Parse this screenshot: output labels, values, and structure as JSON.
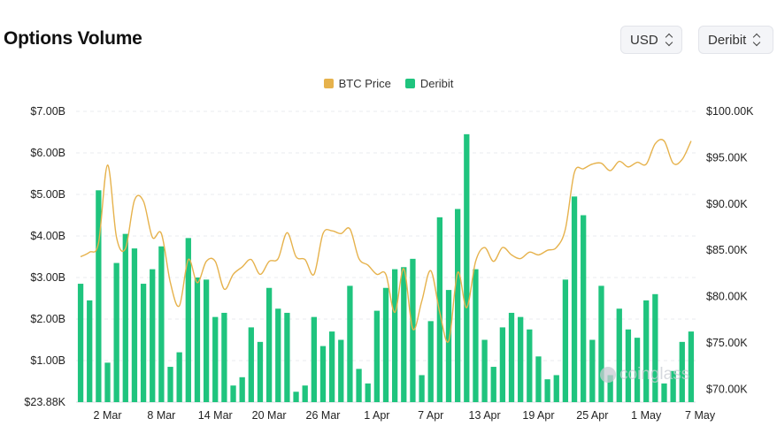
{
  "header": {
    "title": "Options Volume",
    "currency_select": "USD",
    "exchange_select": "Deribit"
  },
  "watermark": "coinglass",
  "colors": {
    "price_line": "#E6B24C",
    "volume_bar": "#1FC47E",
    "grid": "#e9ebef"
  },
  "chart_data": {
    "type": "bar",
    "title": "",
    "legend": {
      "placement": "top-center",
      "entries": [
        "BTC Price",
        "Deribit"
      ]
    },
    "grid": true,
    "x_tick_labels": [
      "2 Mar",
      "8 Mar",
      "14 Mar",
      "20 Mar",
      "26 Mar",
      "1 Apr",
      "7 Apr",
      "13 Apr",
      "19 Apr",
      "25 Apr",
      "1 May",
      "7 May"
    ],
    "x_ticks_at_category_index": [
      3,
      9,
      15,
      21,
      27,
      33,
      39,
      45,
      51,
      57,
      63,
      69
    ],
    "categories_start": "28 Feb",
    "categories_end": "8 May",
    "y_left": {
      "label": "",
      "tick_labels": [
        "$23.88K",
        "$1.00B",
        "$2.00B",
        "$3.00B",
        "$4.00B",
        "$5.00B",
        "$6.00B",
        "$7.00B"
      ],
      "tick_values_billions": [
        0,
        1,
        2,
        3,
        4,
        5,
        6,
        7
      ],
      "range_billions": [
        0,
        7
      ]
    },
    "y_right": {
      "label": "",
      "tick_labels": [
        "$70.00K",
        "$75.00K",
        "$80.00K",
        "$85.00K",
        "$90.00K",
        "$95.00K",
        "$100.00K"
      ],
      "tick_values_k": [
        70,
        75,
        80,
        85,
        90,
        95,
        100
      ],
      "range_k": [
        68.6,
        100
      ]
    },
    "series": [
      {
        "name": "Deribit",
        "kind": "bar",
        "axis": "left",
        "unit": "USD billions",
        "values": [
          2.85,
          2.45,
          5.1,
          0.95,
          3.35,
          4.05,
          3.7,
          2.85,
          3.2,
          3.75,
          0.85,
          1.2,
          3.95,
          3.0,
          2.95,
          2.05,
          2.15,
          0.4,
          0.6,
          1.8,
          1.45,
          2.75,
          2.25,
          2.15,
          0.25,
          0.4,
          2.05,
          1.35,
          1.7,
          1.5,
          2.8,
          0.8,
          0.45,
          2.2,
          2.75,
          3.2,
          3.25,
          3.45,
          0.65,
          1.95,
          4.45,
          2.7,
          4.65,
          6.45,
          3.2,
          1.5,
          0.85,
          1.8,
          2.15,
          2.05,
          1.75,
          1.1,
          0.55,
          0.65,
          2.95,
          4.95,
          4.5,
          1.5,
          2.8,
          0.65,
          2.25,
          1.75,
          1.55,
          2.45,
          2.6,
          0.45,
          0.75,
          1.45,
          1.7
        ]
      },
      {
        "name": "BTC Price",
        "kind": "line",
        "axis": "right",
        "unit": "USD thousands",
        "values": [
          84.3,
          84.8,
          85.8,
          94.2,
          86.4,
          85.2,
          90.4,
          90.3,
          86.4,
          86.8,
          81.5,
          79.0,
          84.0,
          81.5,
          83.8,
          83.8,
          80.8,
          82.4,
          83.2,
          84.0,
          82.4,
          83.8,
          84.1,
          86.9,
          84.3,
          84.0,
          82.4,
          86.8,
          87.1,
          86.8,
          87.3,
          84.1,
          83.4,
          82.4,
          82.4,
          78.3,
          83.0,
          76.5,
          79.5,
          82.8,
          78.3,
          75.2,
          82.6,
          78.8,
          83.8,
          85.3,
          83.8,
          85.3,
          84.5,
          84.1,
          84.8,
          84.5,
          85.0,
          85.3,
          87.3,
          93.4,
          93.8,
          94.3,
          94.4,
          93.6,
          94.6,
          94.0,
          94.5,
          94.3,
          96.5,
          96.8,
          94.4,
          94.8,
          96.8
        ]
      }
    ]
  }
}
